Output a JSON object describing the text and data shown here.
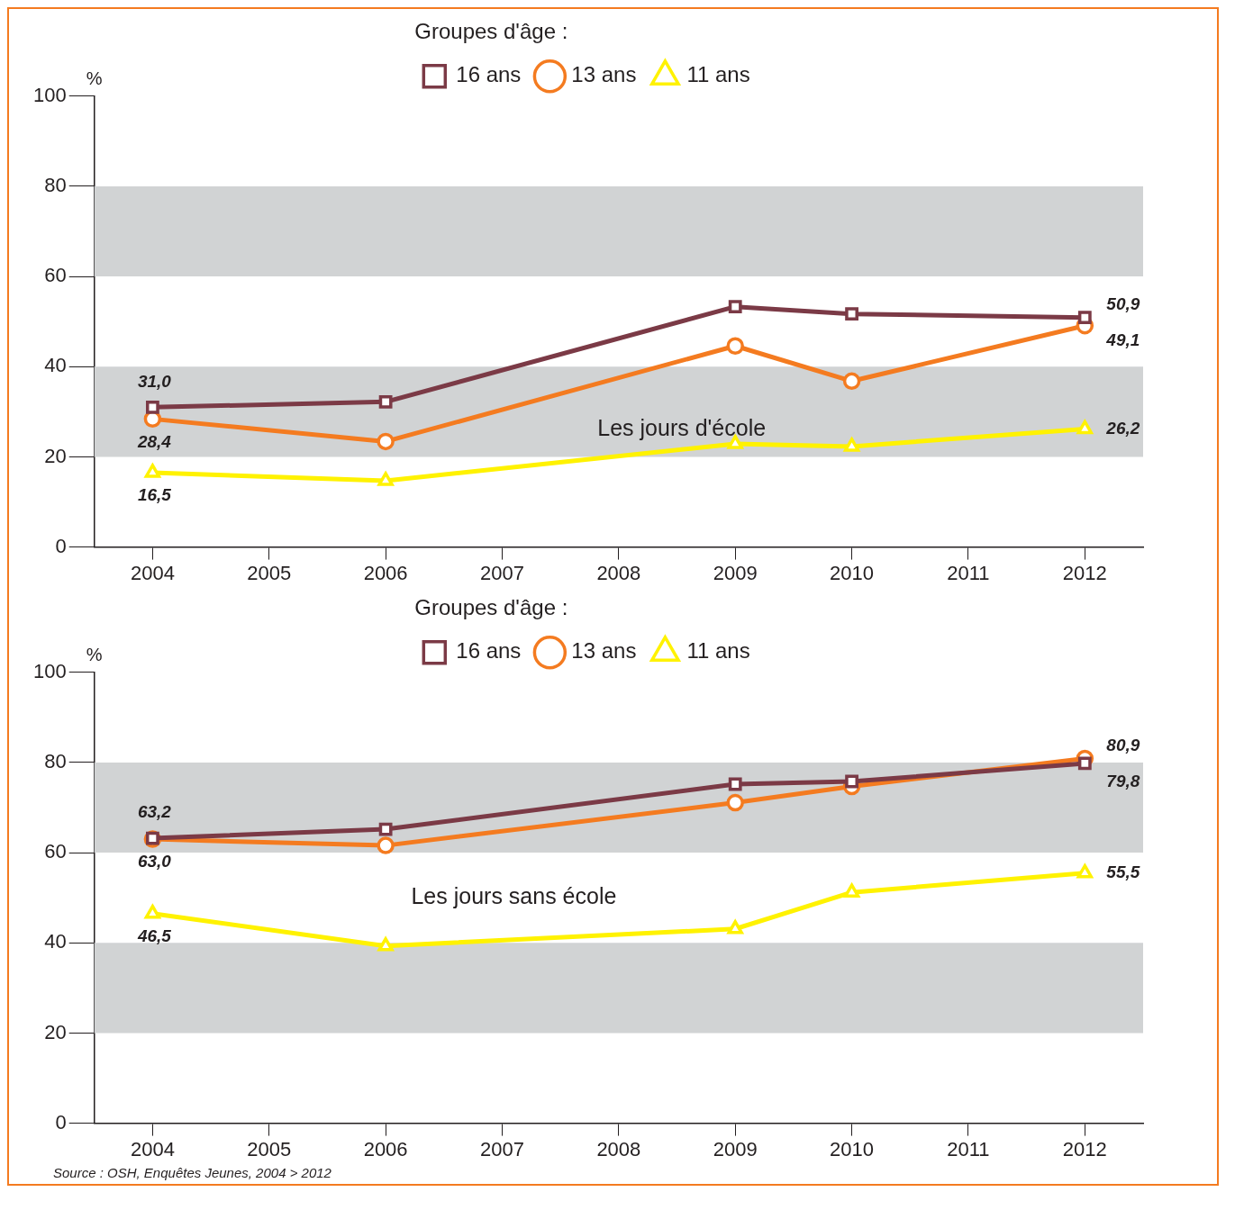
{
  "chart_data": [
    {
      "type": "line",
      "ylabel": "%",
      "legend_title": "Groupes d'âge :",
      "legend": "top",
      "grid": false,
      "line_style": "solid",
      "data_labels": false,
      "x": [
        2004,
        2006,
        2009,
        2010,
        2012
      ],
      "xlim": [
        2003.5,
        2012.5
      ],
      "xticks": [
        2004,
        2005,
        2006,
        2007,
        2008,
        2009,
        2010,
        2011,
        2012
      ],
      "ylim": [
        0,
        100
      ],
      "yticks": [
        0,
        20,
        40,
        60,
        80,
        100
      ],
      "bands": [
        {
          "axis": "y",
          "from": 20,
          "to": 40,
          "color": "#d1d3d4"
        },
        {
          "axis": "y",
          "from": 60,
          "to": 80,
          "color": "#d1d3d4"
        }
      ],
      "annotations": [
        "Les jours d'école"
      ],
      "series": [
        {
          "name": "16 ans",
          "color": "#7b3a46",
          "marker": "square",
          "values": [
            31.0,
            32.2,
            53.3,
            51.7,
            50.9
          ],
          "value_labels": [
            "31,0",
            null,
            null,
            null,
            "50,9"
          ]
        },
        {
          "name": "13 ans",
          "color": "#f47b20",
          "marker": "circle",
          "values": [
            28.4,
            23.4,
            44.6,
            36.8,
            49.1
          ],
          "value_labels": [
            "28,4",
            null,
            null,
            null,
            "49,1"
          ]
        },
        {
          "name": "11 ans",
          "color": "#fff200",
          "marker": "triangle",
          "values": [
            16.5,
            14.7,
            22.9,
            22.3,
            26.2
          ],
          "value_labels": [
            "16,5",
            null,
            null,
            null,
            "26,2"
          ]
        }
      ]
    },
    {
      "type": "line",
      "ylabel": "%",
      "legend_title": "Groupes d'âge :",
      "legend": "top",
      "grid": false,
      "line_style": "solid",
      "data_labels": false,
      "x": [
        2004,
        2006,
        2009,
        2010,
        2012
      ],
      "xlim": [
        2003.5,
        2012.5
      ],
      "xticks": [
        2004,
        2005,
        2006,
        2007,
        2008,
        2009,
        2010,
        2011,
        2012
      ],
      "ylim": [
        0,
        100
      ],
      "yticks": [
        0,
        20,
        40,
        60,
        80,
        100
      ],
      "bands": [
        {
          "axis": "y",
          "from": 20,
          "to": 40,
          "color": "#d1d3d4"
        },
        {
          "axis": "y",
          "from": 60,
          "to": 80,
          "color": "#d1d3d4"
        }
      ],
      "annotations": [
        "Les jours sans école",
        "Source : OSH, Enquêtes Jeunes, 2004 > 2012"
      ],
      "series": [
        {
          "name": "16 ans",
          "color": "#7b3a46",
          "marker": "square",
          "values": [
            63.2,
            65.2,
            75.2,
            75.8,
            79.8
          ],
          "value_labels": [
            "63,2",
            null,
            null,
            null,
            "79,8"
          ]
        },
        {
          "name": "13 ans",
          "color": "#f47b20",
          "marker": "circle",
          "values": [
            63.0,
            61.6,
            71.1,
            74.7,
            80.9
          ],
          "value_labels": [
            "63,0",
            null,
            null,
            null,
            "80,9"
          ]
        },
        {
          "name": "11 ans",
          "color": "#fff200",
          "marker": "triangle",
          "values": [
            46.5,
            39.3,
            43.1,
            51.2,
            55.5
          ],
          "value_labels": [
            "46,5",
            null,
            null,
            null,
            "55,5"
          ]
        }
      ]
    }
  ]
}
